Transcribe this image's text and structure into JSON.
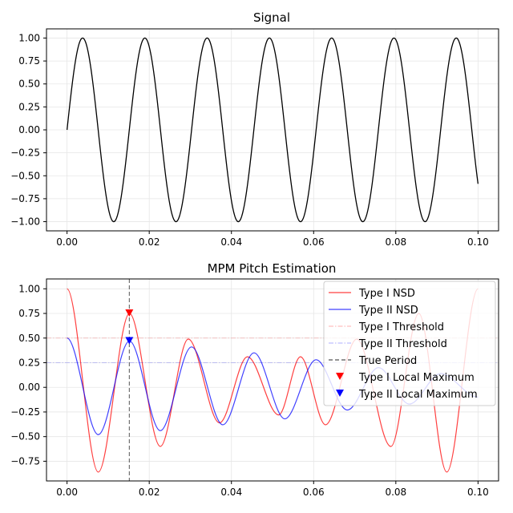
{
  "chart_data": [
    {
      "type": "line",
      "title": "Signal",
      "xlabel": "",
      "ylabel": "",
      "xlim": [
        -0.005,
        0.105
      ],
      "ylim": [
        -1.1,
        1.1
      ],
      "xticks": [
        0.0,
        0.02,
        0.04,
        0.06,
        0.08,
        0.1
      ],
      "xtick_labels": [
        "0.00",
        "0.02",
        "0.04",
        "0.06",
        "0.08",
        "0.10"
      ],
      "yticks": [
        -1.0,
        -0.75,
        -0.5,
        -0.25,
        0.0,
        0.25,
        0.5,
        0.75,
        1.0
      ],
      "ytick_labels": [
        "−1.00",
        "−0.75",
        "−0.50",
        "−0.25",
        "0.00",
        "0.25",
        "0.50",
        "0.75",
        "1.00"
      ],
      "grid": true,
      "series": [
        {
          "name": "",
          "color": "#000000",
          "function": "sin(2*pi*f*t)",
          "frequency_hz": 66,
          "x_range": [
            0.0,
            0.1
          ]
        }
      ]
    },
    {
      "type": "line",
      "title": "MPM Pitch Estimation",
      "xlabel": "",
      "ylabel": "",
      "xlim": [
        -0.005,
        0.105
      ],
      "ylim": [
        -0.95,
        1.1
      ],
      "xticks": [
        0.0,
        0.02,
        0.04,
        0.06,
        0.08,
        0.1
      ],
      "xtick_labels": [
        "0.00",
        "0.02",
        "0.04",
        "0.06",
        "0.08",
        "0.10"
      ],
      "yticks": [
        -0.75,
        -0.5,
        -0.25,
        0.0,
        0.25,
        0.5,
        0.75,
        1.0
      ],
      "ytick_labels": [
        "−0.75",
        "−0.50",
        "−0.25",
        "0.00",
        "0.25",
        "0.50",
        "0.75",
        "1.00"
      ],
      "grid": true,
      "legend_placement": "top-right",
      "series": [
        {
          "name": "Type I NSD",
          "color": "#ff0000",
          "style": "solid",
          "x": [
            0.0,
            0.0076,
            0.0152,
            0.0227,
            0.0295,
            0.0371,
            0.0439,
            0.0515,
            0.0568,
            0.0629,
            0.0705,
            0.0788,
            0.0856,
            0.0924,
            0.1
          ],
          "y": [
            1.0,
            -0.86,
            0.75,
            -0.6,
            0.49,
            -0.36,
            0.31,
            -0.28,
            0.31,
            -0.38,
            0.49,
            -0.6,
            0.75,
            -0.86,
            1.0
          ]
        },
        {
          "name": "Type II NSD",
          "color": "#0000ff",
          "style": "solid",
          "x": [
            0.0,
            0.0076,
            0.0152,
            0.0227,
            0.0303,
            0.0379,
            0.0455,
            0.053,
            0.0606,
            0.0682,
            0.0758,
            0.0833,
            0.0909,
            0.1
          ],
          "y": [
            0.5,
            -0.48,
            0.47,
            -0.44,
            0.41,
            -0.38,
            0.35,
            -0.32,
            0.28,
            -0.23,
            0.2,
            -0.17,
            0.14,
            -0.1
          ]
        },
        {
          "name": "Type I Threshold",
          "color": "#ff0000",
          "style": "dashdot",
          "y_constant": 0.5
        },
        {
          "name": "Type II Threshold",
          "color": "#0000ff",
          "style": "dashdot",
          "y_constant": 0.25
        },
        {
          "name": "True Period",
          "color": "#555555",
          "style": "dashed",
          "x_constant": 0.01515
        },
        {
          "name": "Type I Local Maximum",
          "color": "#ff0000",
          "marker": "triangle-down",
          "x": [
            0.01515
          ],
          "y": [
            0.75
          ]
        },
        {
          "name": "Type II Local Maximum",
          "color": "#0000ff",
          "marker": "triangle-down",
          "x": [
            0.01515
          ],
          "y": [
            0.47
          ]
        }
      ]
    }
  ]
}
